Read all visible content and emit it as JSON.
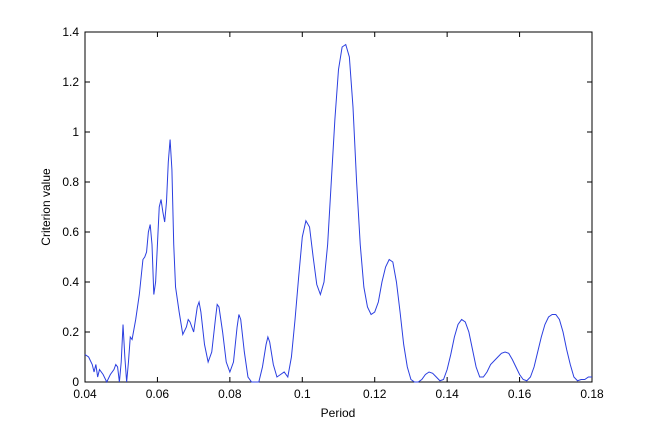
{
  "chart_data": {
    "type": "line",
    "xlabel": "Period",
    "ylabel": "Criterion value",
    "xlim": [
      0.04,
      0.18
    ],
    "ylim": [
      0,
      1.4
    ],
    "xticks": [
      0.04,
      0.06,
      0.08,
      0.1,
      0.12,
      0.14,
      0.16,
      0.18
    ],
    "yticks": [
      0,
      0.2,
      0.4,
      0.6,
      0.8,
      1,
      1.2,
      1.4
    ],
    "grid": false,
    "series": [
      {
        "color": "#2b3fe0",
        "x": [
          0.04,
          0.041,
          0.042,
          0.0425,
          0.043,
          0.0435,
          0.044,
          0.045,
          0.046,
          0.047,
          0.048,
          0.0485,
          0.049,
          0.0495,
          0.05,
          0.0505,
          0.051,
          0.0515,
          0.052,
          0.0525,
          0.053,
          0.054,
          0.055,
          0.056,
          0.0565,
          0.057,
          0.0575,
          0.058,
          0.0585,
          0.059,
          0.0595,
          0.06,
          0.0605,
          0.061,
          0.0615,
          0.062,
          0.0625,
          0.063,
          0.0635,
          0.064,
          0.0645,
          0.065,
          0.066,
          0.067,
          0.068,
          0.0685,
          0.069,
          0.07,
          0.071,
          0.0715,
          0.072,
          0.073,
          0.074,
          0.075,
          0.076,
          0.0765,
          0.077,
          0.078,
          0.079,
          0.08,
          0.081,
          0.082,
          0.0825,
          0.083,
          0.084,
          0.085,
          0.086,
          0.087,
          0.088,
          0.089,
          0.09,
          0.0905,
          0.091,
          0.092,
          0.093,
          0.094,
          0.095,
          0.096,
          0.097,
          0.098,
          0.099,
          0.1,
          0.101,
          0.102,
          0.103,
          0.104,
          0.105,
          0.106,
          0.107,
          0.108,
          0.109,
          0.11,
          0.111,
          0.112,
          0.113,
          0.114,
          0.115,
          0.116,
          0.117,
          0.118,
          0.119,
          0.12,
          0.121,
          0.122,
          0.123,
          0.124,
          0.125,
          0.126,
          0.127,
          0.128,
          0.129,
          0.13,
          0.131,
          0.132,
          0.133,
          0.134,
          0.135,
          0.136,
          0.137,
          0.138,
          0.139,
          0.14,
          0.141,
          0.142,
          0.143,
          0.144,
          0.145,
          0.146,
          0.147,
          0.148,
          0.149,
          0.15,
          0.151,
          0.152,
          0.154,
          0.155,
          0.156,
          0.157,
          0.158,
          0.159,
          0.16,
          0.161,
          0.162,
          0.163,
          0.164,
          0.165,
          0.166,
          0.167,
          0.168,
          0.169,
          0.17,
          0.171,
          0.172,
          0.173,
          0.174,
          0.175,
          0.176,
          0.177,
          0.178,
          0.179,
          0.18
        ],
        "values": [
          0.11,
          0.1,
          0.07,
          0.04,
          0.07,
          0.02,
          0.05,
          0.03,
          0.0,
          0.03,
          0.05,
          0.07,
          0.06,
          0.0,
          0.08,
          0.23,
          0.1,
          0.0,
          0.08,
          0.18,
          0.17,
          0.25,
          0.35,
          0.49,
          0.5,
          0.52,
          0.6,
          0.63,
          0.55,
          0.35,
          0.4,
          0.55,
          0.7,
          0.73,
          0.68,
          0.64,
          0.72,
          0.88,
          0.97,
          0.85,
          0.55,
          0.38,
          0.28,
          0.19,
          0.22,
          0.25,
          0.24,
          0.2,
          0.3,
          0.32,
          0.28,
          0.15,
          0.08,
          0.12,
          0.25,
          0.31,
          0.3,
          0.2,
          0.08,
          0.04,
          0.08,
          0.22,
          0.27,
          0.25,
          0.12,
          0.02,
          0.0,
          0.0,
          0.0,
          0.06,
          0.15,
          0.18,
          0.16,
          0.07,
          0.02,
          0.03,
          0.04,
          0.02,
          0.1,
          0.25,
          0.42,
          0.58,
          0.645,
          0.62,
          0.5,
          0.39,
          0.35,
          0.4,
          0.55,
          0.8,
          1.05,
          1.25,
          1.34,
          1.35,
          1.3,
          1.1,
          0.8,
          0.55,
          0.38,
          0.3,
          0.27,
          0.28,
          0.32,
          0.4,
          0.46,
          0.49,
          0.48,
          0.4,
          0.28,
          0.15,
          0.06,
          0.01,
          0.0,
          0.0,
          0.01,
          0.03,
          0.04,
          0.035,
          0.02,
          0.005,
          0.01,
          0.05,
          0.11,
          0.18,
          0.23,
          0.25,
          0.24,
          0.2,
          0.13,
          0.06,
          0.02,
          0.02,
          0.04,
          0.07,
          0.1,
          0.115,
          0.12,
          0.115,
          0.09,
          0.06,
          0.03,
          0.01,
          0.005,
          0.02,
          0.06,
          0.12,
          0.18,
          0.23,
          0.26,
          0.27,
          0.27,
          0.25,
          0.2,
          0.13,
          0.07,
          0.02,
          0.005,
          0.01,
          0.01,
          0.02,
          0.02
        ]
      }
    ]
  }
}
